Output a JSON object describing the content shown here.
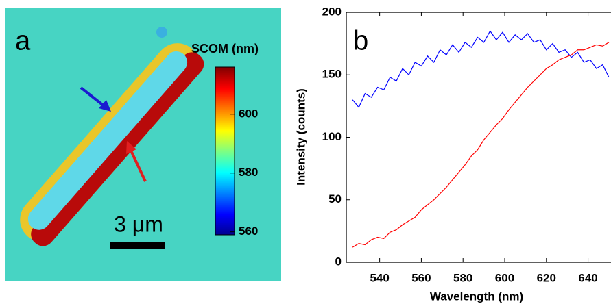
{
  "chart_data": [
    {
      "type": "colormap",
      "panel_label": "a",
      "colorbar_label": "SCOM (nm)",
      "scale_bar_label": "3 μm",
      "clim": [
        559,
        616
      ],
      "cticks": [
        560,
        580,
        600
      ]
    },
    {
      "type": "line",
      "panel_label": "b",
      "x_label": "Wavelength (nm)",
      "y_label": "Intensity (counts)",
      "x": [
        527,
        530,
        533,
        536,
        539,
        542,
        545,
        548,
        551,
        554,
        557,
        560,
        563,
        566,
        569,
        572,
        575,
        578,
        581,
        584,
        587,
        590,
        593,
        596,
        599,
        602,
        605,
        608,
        611,
        614,
        617,
        620,
        623,
        626,
        629,
        632,
        635,
        638,
        641,
        644,
        647,
        650
      ],
      "series": [
        {
          "color": "#0000ff",
          "values": [
            130,
            124,
            135,
            132,
            140,
            138,
            148,
            145,
            155,
            150,
            160,
            157,
            165,
            160,
            170,
            166,
            174,
            168,
            176,
            172,
            180,
            176,
            185,
            178,
            184,
            176,
            182,
            178,
            183,
            176,
            178,
            170,
            175,
            168,
            170,
            164,
            168,
            160,
            162,
            155,
            158,
            148
          ]
        },
        {
          "color": "#ff0000",
          "values": [
            12,
            15,
            14,
            18,
            20,
            19,
            24,
            26,
            30,
            33,
            36,
            42,
            46,
            50,
            55,
            60,
            66,
            72,
            78,
            85,
            90,
            98,
            104,
            110,
            115,
            122,
            128,
            134,
            140,
            145,
            150,
            155,
            158,
            162,
            164,
            166,
            170,
            170,
            172,
            174,
            173,
            176
          ]
        }
      ],
      "xlim": [
        524,
        651
      ],
      "ylim": [
        0,
        200
      ],
      "xticks": [
        540,
        560,
        580,
        600,
        620,
        640
      ],
      "yticks": [
        0,
        50,
        100,
        150,
        200
      ]
    }
  ]
}
